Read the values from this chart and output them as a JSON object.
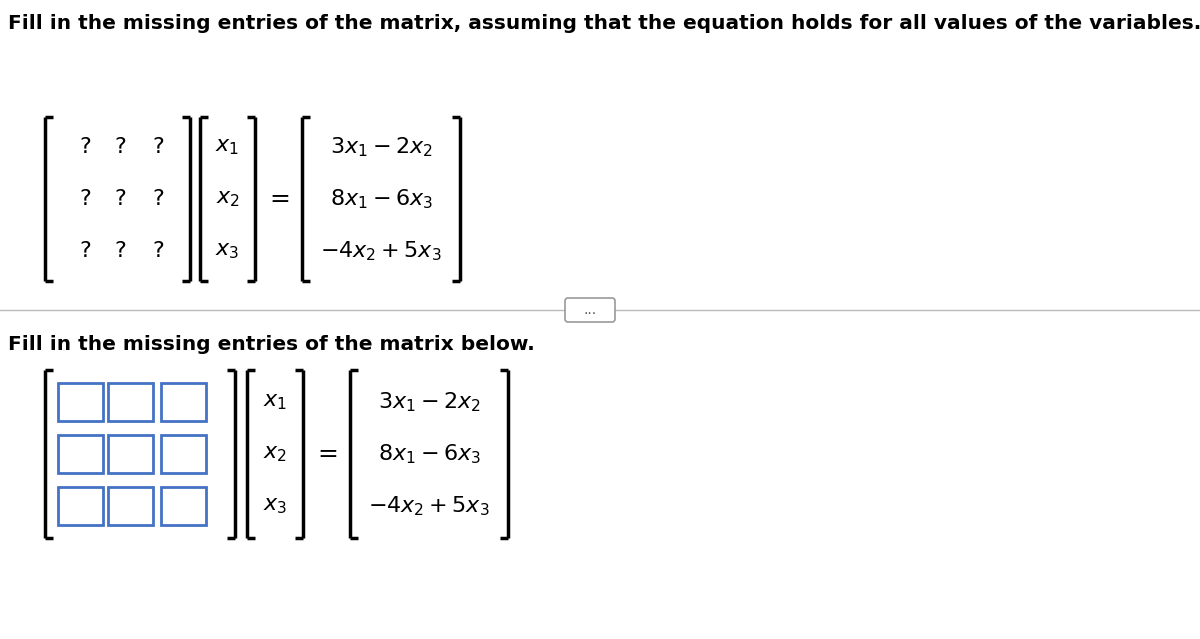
{
  "title1": "Fill in the missing entries of the matrix, assuming that the equation holds for all values of the variables.",
  "title2": "Fill in the missing entries of the matrix below.",
  "bg_color": "#ffffff",
  "text_color": "#000000",
  "box_color": "#4472c4",
  "dots_text": "...",
  "fs_title": 14.5,
  "fs_math": 16,
  "fs_qmark": 16,
  "fs_eq": 18,
  "fs_dots": 10
}
